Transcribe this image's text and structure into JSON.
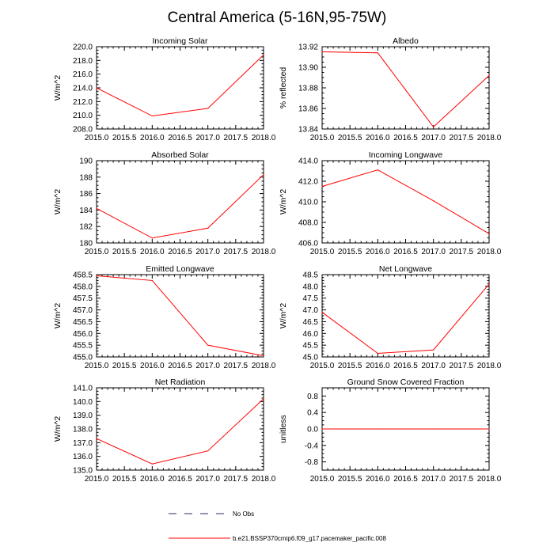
{
  "figure_title": "Central America (5-16N,95-75W)",
  "legend": {
    "no_obs_label": "No Obs",
    "model_label": "b.e21.BSSP370cmip6.f09_g17.pacemaker_pacific.008",
    "no_obs_color": "#2a2a6e",
    "model_color": "#ff0000"
  },
  "chart_data": [
    {
      "type": "line",
      "title": "Incoming Solar",
      "ylabel": "W/m^2",
      "x": [
        2015,
        2016,
        2017,
        2018
      ],
      "y": [
        214.0,
        209.9,
        211.0,
        218.8
      ],
      "xlim": [
        2015,
        2018
      ],
      "ylim": [
        208,
        220
      ],
      "xticks": [
        "2015.0",
        "2015.5",
        "2016.0",
        "2016.5",
        "2017.0",
        "2017.5",
        "2018.0"
      ],
      "yticks": [
        "208.0",
        "210.0",
        "212.0",
        "214.0",
        "216.0",
        "218.0",
        "220.0"
      ]
    },
    {
      "type": "line",
      "title": "Albedo",
      "ylabel": "% reflected",
      "x": [
        2015,
        2016,
        2017,
        2018
      ],
      "y": [
        13.915,
        13.914,
        13.842,
        13.892
      ],
      "xlim": [
        2015,
        2018
      ],
      "ylim": [
        13.84,
        13.92
      ],
      "xticks": [
        "2015.0",
        "2015.5",
        "2016.0",
        "2016.5",
        "2017.0",
        "2017.5",
        "2018.0"
      ],
      "yticks": [
        "13.84",
        "13.86",
        "13.88",
        "13.90",
        "13.92"
      ]
    },
    {
      "type": "line",
      "title": "Absorbed Solar",
      "ylabel": "W/m^2",
      "x": [
        2015,
        2016,
        2017,
        2018
      ],
      "y": [
        184.2,
        180.6,
        181.8,
        188.3
      ],
      "xlim": [
        2015,
        2018
      ],
      "ylim": [
        180,
        190
      ],
      "xticks": [
        "2015.0",
        "2015.5",
        "2016.0",
        "2016.5",
        "2017.0",
        "2017.5",
        "2018.0"
      ],
      "yticks": [
        "180",
        "182",
        "184",
        "186",
        "188",
        "190"
      ]
    },
    {
      "type": "line",
      "title": "Incoming Longwave",
      "ylabel": "W/m^2",
      "x": [
        2015,
        2016,
        2017,
        2018
      ],
      "y": [
        411.5,
        413.1,
        410.1,
        406.9
      ],
      "xlim": [
        2015,
        2018
      ],
      "ylim": [
        406,
        414
      ],
      "xticks": [
        "2015.0",
        "2015.5",
        "2016.0",
        "2016.5",
        "2017.0",
        "2017.5",
        "2018.0"
      ],
      "yticks": [
        "406.0",
        "408.0",
        "410.0",
        "412.0",
        "414.0"
      ]
    },
    {
      "type": "line",
      "title": "Emitted Longwave",
      "ylabel": "W/m^2",
      "x": [
        2015,
        2016,
        2017,
        2018
      ],
      "y": [
        458.45,
        458.25,
        455.5,
        455.05
      ],
      "xlim": [
        2015,
        2018
      ],
      "ylim": [
        455,
        458.5
      ],
      "xticks": [
        "2015.0",
        "2015.5",
        "2016.0",
        "2016.5",
        "2017.0",
        "2017.5",
        "2018.0"
      ],
      "yticks": [
        "455.0",
        "455.5",
        "456.0",
        "456.5",
        "457.0",
        "457.5",
        "458.0",
        "458.5"
      ]
    },
    {
      "type": "line",
      "title": "Net Longwave",
      "ylabel": "W/m^2",
      "x": [
        2015,
        2016,
        2017,
        2018
      ],
      "y": [
        46.9,
        45.15,
        45.3,
        48.1
      ],
      "xlim": [
        2015,
        2018
      ],
      "ylim": [
        45,
        48.5
      ],
      "xticks": [
        "2015.0",
        "2015.5",
        "2016.0",
        "2016.5",
        "2017.0",
        "2017.5",
        "2018.0"
      ],
      "yticks": [
        "45.0",
        "45.5",
        "46.0",
        "46.5",
        "47.0",
        "47.5",
        "48.0",
        "48.5"
      ]
    },
    {
      "type": "line",
      "title": "Net Radiation",
      "ylabel": "W/m^2",
      "x": [
        2015,
        2016,
        2017,
        2018
      ],
      "y": [
        137.3,
        135.45,
        136.4,
        140.2
      ],
      "xlim": [
        2015,
        2018
      ],
      "ylim": [
        135,
        141
      ],
      "xticks": [
        "2015.0",
        "2015.5",
        "2016.0",
        "2016.5",
        "2017.0",
        "2017.5",
        "2018.0"
      ],
      "yticks": [
        "135.0",
        "136.0",
        "137.0",
        "138.0",
        "139.0",
        "140.0",
        "141.0"
      ]
    },
    {
      "type": "line",
      "title": "Ground Snow Covered Fraction",
      "ylabel": "unitless",
      "x": [
        2015,
        2016,
        2017,
        2018
      ],
      "y": [
        0.0,
        0.0,
        0.0,
        0.0
      ],
      "xlim": [
        2015,
        2018
      ],
      "ylim": [
        -1.0,
        1.0
      ],
      "xticks": [
        "2015.0",
        "2015.5",
        "2016.0",
        "2016.5",
        "2017.0",
        "2017.5",
        "2018.0"
      ],
      "yticks": [
        "-0.8",
        "-0.4",
        "0.0",
        "0.4",
        "0.8"
      ]
    }
  ]
}
